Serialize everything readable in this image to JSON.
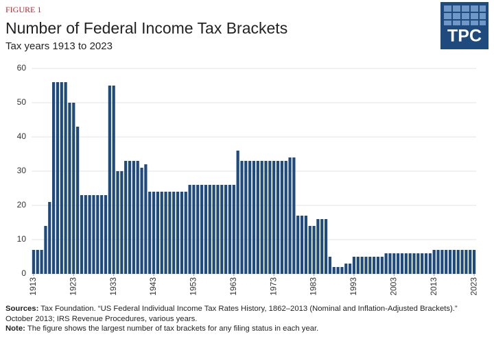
{
  "figure_label": "FIGURE 1",
  "logo": "TPC",
  "chart_data": {
    "type": "bar",
    "title": "Number of Federal Income Tax Brackets",
    "subtitle": "Tax years 1913 to 2023",
    "color": "#1f4a7d",
    "grid": true,
    "x": [
      1913,
      1914,
      1915,
      1916,
      1917,
      1918,
      1919,
      1920,
      1921,
      1922,
      1923,
      1924,
      1925,
      1926,
      1927,
      1928,
      1929,
      1930,
      1931,
      1932,
      1933,
      1934,
      1935,
      1936,
      1937,
      1938,
      1939,
      1940,
      1941,
      1942,
      1943,
      1944,
      1945,
      1946,
      1947,
      1948,
      1949,
      1950,
      1951,
      1952,
      1953,
      1954,
      1955,
      1956,
      1957,
      1958,
      1959,
      1960,
      1961,
      1962,
      1963,
      1964,
      1965,
      1966,
      1967,
      1968,
      1969,
      1970,
      1971,
      1972,
      1973,
      1974,
      1975,
      1976,
      1977,
      1978,
      1979,
      1980,
      1981,
      1982,
      1983,
      1984,
      1985,
      1986,
      1987,
      1988,
      1989,
      1990,
      1991,
      1992,
      1993,
      1994,
      1995,
      1996,
      1997,
      1998,
      1999,
      2000,
      2001,
      2002,
      2003,
      2004,
      2005,
      2006,
      2007,
      2008,
      2009,
      2010,
      2011,
      2012,
      2013,
      2014,
      2015,
      2016,
      2017,
      2018,
      2019,
      2020,
      2021,
      2022,
      2023
    ],
    "values": [
      7,
      7,
      7,
      14,
      21,
      56,
      56,
      56,
      56,
      50,
      50,
      43,
      23,
      23,
      23,
      23,
      23,
      23,
      23,
      55,
      55,
      30,
      30,
      33,
      33,
      33,
      33,
      31,
      32,
      24,
      24,
      24,
      24,
      24,
      24,
      24,
      24,
      24,
      24,
      26,
      26,
      26,
      26,
      26,
      26,
      26,
      26,
      26,
      26,
      26,
      26,
      36,
      33,
      33,
      33,
      33,
      33,
      33,
      33,
      33,
      33,
      33,
      33,
      33,
      34,
      34,
      17,
      17,
      17,
      14,
      14,
      16,
      16,
      16,
      5,
      2,
      2,
      2,
      3,
      3,
      5,
      5,
      5,
      5,
      5,
      5,
      5,
      5,
      6,
      6,
      6,
      6,
      6,
      6,
      6,
      6,
      6,
      6,
      6,
      6,
      7,
      7,
      7,
      7,
      7,
      7,
      7,
      7,
      7,
      7,
      7
    ],
    "xlim": [
      1912.5,
      2023.5
    ],
    "xticks": [
      1913,
      1923,
      1933,
      1943,
      1953,
      1963,
      1973,
      1983,
      1993,
      2003,
      2013,
      2023
    ],
    "ylim": [
      0,
      60
    ],
    "yticks": [
      0,
      10,
      20,
      30,
      40,
      50,
      60
    ]
  },
  "notes": {
    "sources_label": "Sources:",
    "sources": "Tax Foundation. “US Federal Individual Income Tax Rates History, 1862–2013 (Nominal and Inflation-Adjusted Brackets).” October 2013; IRS Revenue Procedures, various years.",
    "note_label": "Note:",
    "note": "The figure shows the largest number of tax brackets for any filing status in each year."
  }
}
